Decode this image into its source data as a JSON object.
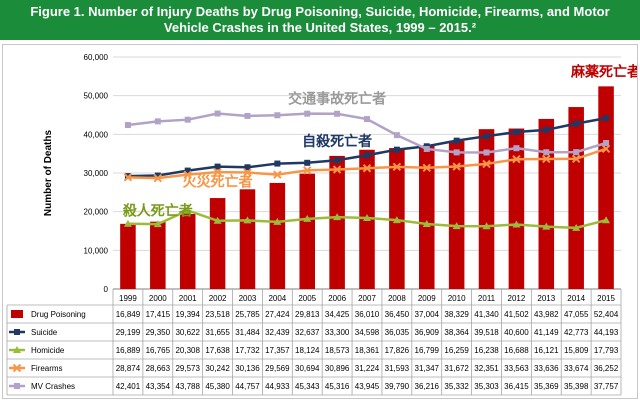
{
  "title": {
    "line1": "Figure 1. Number of Injury Deaths by Drug Poisoning, Suicide, Homicide, Firearms, and Motor",
    "line2": "Vehicle Crashes in the United States, 1999 – 2015.²"
  },
  "chart_data": {
    "type": "bar+line",
    "ylabel": "Number of Deaths",
    "ylim": [
      0,
      60000
    ],
    "ytick_labels": [
      "0",
      "10,000",
      "20,000",
      "30,000",
      "40,000",
      "50,000",
      "60,000"
    ],
    "categories": [
      "1999",
      "2000",
      "2001",
      "2002",
      "2003",
      "2004",
      "2005",
      "2006",
      "2007",
      "2008",
      "2009",
      "2010",
      "2011",
      "2012",
      "2013",
      "2014",
      "2015"
    ],
    "series": [
      {
        "name": "Drug Poisoning",
        "kind": "bar",
        "color": "#c00000",
        "values": [
          16849,
          17415,
          19394,
          23518,
          25785,
          27424,
          29813,
          34425,
          36010,
          36450,
          37004,
          38329,
          41340,
          41502,
          43982,
          47055,
          52404
        ],
        "labels": [
          "16,849",
          "17,415",
          "19,394",
          "23,518",
          "25,785",
          "27,424",
          "29,813",
          "34,425",
          "36,010",
          "36,450",
          "37,004",
          "38,329",
          "41,340",
          "41,502",
          "43,982",
          "47,055",
          "52,404"
        ]
      },
      {
        "name": "Suicide",
        "kind": "line",
        "color": "#1f3864",
        "marker": "square",
        "values": [
          29199,
          29350,
          30622,
          31655,
          31484,
          32439,
          32637,
          33300,
          34598,
          36035,
          36909,
          38364,
          39518,
          40600,
          41149,
          42773,
          44193
        ],
        "labels": [
          "29,199",
          "29,350",
          "30,622",
          "31,655",
          "31,484",
          "32,439",
          "32,637",
          "33,300",
          "34,598",
          "36,035",
          "36,909",
          "38,364",
          "39,518",
          "40,600",
          "41,149",
          "42,773",
          "44,193"
        ]
      },
      {
        "name": "Homicide",
        "kind": "line",
        "color": "#9bbb3a",
        "marker": "triangle",
        "values": [
          16889,
          16765,
          20308,
          17638,
          17732,
          17357,
          18124,
          18573,
          18361,
          17826,
          16799,
          16259,
          16238,
          16688,
          16121,
          15809,
          17793
        ],
        "labels": [
          "16,889",
          "16,765",
          "20,308",
          "17,638",
          "17,732",
          "17,357",
          "18,124",
          "18,573",
          "18,361",
          "17,826",
          "16,799",
          "16,259",
          "16,238",
          "16,688",
          "16,121",
          "15,809",
          "17,793"
        ]
      },
      {
        "name": "Firearms",
        "kind": "line",
        "color": "#f79646",
        "marker": "x",
        "values": [
          28874,
          28663,
          29573,
          30242,
          30136,
          29569,
          30694,
          30896,
          31224,
          31593,
          31347,
          31672,
          32351,
          33563,
          33636,
          33674,
          36252
        ],
        "labels": [
          "28,874",
          "28,663",
          "29,573",
          "30,242",
          "30,136",
          "29,569",
          "30,694",
          "30,896",
          "31,224",
          "31,593",
          "31,347",
          "31,672",
          "32,351",
          "33,563",
          "33,636",
          "33,674",
          "36,252"
        ]
      },
      {
        "name": "MV Crashes",
        "kind": "line",
        "color": "#b3a2c7",
        "marker": "square",
        "values": [
          42401,
          43354,
          43788,
          45380,
          44757,
          44933,
          45343,
          45316,
          43945,
          39790,
          36216,
          35332,
          35303,
          36415,
          35369,
          35398,
          37757
        ],
        "labels": [
          "42,401",
          "43,354",
          "43,788",
          "45,380",
          "44,757",
          "44,933",
          "45,343",
          "45,316",
          "43,945",
          "39,790",
          "36,216",
          "35,332",
          "35,303",
          "36,415",
          "35,369",
          "35,398",
          "37,757"
        ]
      }
    ],
    "annotations": [
      {
        "text": "麻薬死亡者",
        "color": "#c00000",
        "year": "2015",
        "value": 55000
      },
      {
        "text": "交通事故死亡者",
        "color": "#9a9a9a",
        "year": "2006",
        "value": 48000
      },
      {
        "text": "自殺死亡者",
        "color": "#1f3864",
        "year": "2006",
        "value": 37000
      },
      {
        "text": "火災死亡者",
        "color": "#f79646",
        "year": "2002",
        "value": 26500
      },
      {
        "text": "殺人死亡者",
        "color": "#7a9a1a",
        "year": "2000",
        "value": 19000
      }
    ]
  }
}
